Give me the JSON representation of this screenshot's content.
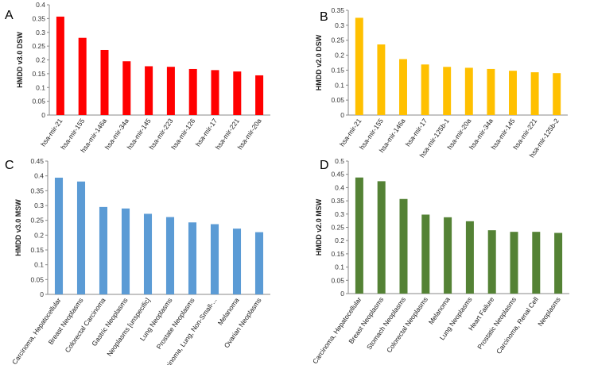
{
  "chart_data": [
    {
      "type": "bar",
      "panel_label": "A",
      "ylabel": "HMDD v3.0 DSW",
      "color": "#ff0000",
      "ylim": [
        0,
        0.4
      ],
      "yticks": [
        "0",
        "0.05",
        "0.1",
        "0.15",
        "0.2",
        "0.25",
        "0.3",
        "0.35",
        "0.4"
      ],
      "categories": [
        "hsa-mir-21",
        "hsa-mir-155",
        "hsa-mir-146a",
        "hsa-mir-34a",
        "hsa-mir-145",
        "hsa-mir-223",
        "hsa-mir-126",
        "hsa-mir-17",
        "hsa-mir-221",
        "hsa-mir-20a"
      ],
      "values": [
        0.357,
        0.28,
        0.236,
        0.195,
        0.177,
        0.175,
        0.167,
        0.163,
        0.158,
        0.144
      ]
    },
    {
      "type": "bar",
      "panel_label": "B",
      "ylabel": "HMDD v2.0 DSW",
      "color": "#ffc000",
      "ylim": [
        0,
        0.35
      ],
      "yticks": [
        "0",
        "0.05",
        "0.1",
        "0.15",
        "0.2",
        "0.25",
        "0.3",
        "0.35"
      ],
      "categories": [
        "hsa-mir-21",
        "hsa-mir-155",
        "hsa-mir-146a",
        "hsa-mir-17",
        "hsa-mir-125b-1",
        "hsa-mir-20a",
        "hsa-mir-34a",
        "hsa-mir-145",
        "hsa-mir-221",
        "hsa-mir-125b-2"
      ],
      "values": [
        0.325,
        0.236,
        0.187,
        0.169,
        0.161,
        0.158,
        0.154,
        0.148,
        0.143,
        0.14
      ]
    },
    {
      "type": "bar",
      "panel_label": "C",
      "ylabel": "HMDD v3.0 MSW",
      "color": "#5b9bd5",
      "ylim": [
        0,
        0.45
      ],
      "yticks": [
        "0",
        "0.05",
        "0.1",
        "0.15",
        "0.2",
        "0.25",
        "0.3",
        "0.35",
        "0.4",
        "0.45"
      ],
      "categories": [
        "Carcinoma, Hepatocellular",
        "Breast Neoplasms",
        "Colorectal Carcinoma",
        "Gastric Neoplasms",
        "Neoplasms [unspecific]",
        "Lung Neoplasms",
        "Prostate Neoplasms",
        "Carcinoma, Lung, Non-Small-...",
        "Melanoma",
        "Ovarian Neoplasms"
      ],
      "values": [
        0.394,
        0.381,
        0.295,
        0.29,
        0.272,
        0.261,
        0.243,
        0.237,
        0.222,
        0.21
      ]
    },
    {
      "type": "bar",
      "panel_label": "D",
      "ylabel": "HMDD v2.0 MSW",
      "color": "#548235",
      "ylim": [
        0,
        0.5
      ],
      "yticks": [
        "0",
        "0.05",
        "0.1",
        "0.15",
        "0.2",
        "0.25",
        "0.3",
        "0.35",
        "0.4",
        "0.45",
        "0.5"
      ],
      "categories": [
        "Carcinoma, Hepatocellular",
        "Breast Neoplasms",
        "Stomach Neoplasms",
        "Colorectal Neoplasms",
        "Melanoma",
        "Lung Neoplasms",
        "Heart Failure",
        "Prostatic Neoplasms",
        "Carcinoma, Renal Cell",
        "Neoplasms"
      ],
      "values": [
        0.438,
        0.424,
        0.357,
        0.298,
        0.288,
        0.273,
        0.239,
        0.233,
        0.233,
        0.229
      ]
    }
  ]
}
